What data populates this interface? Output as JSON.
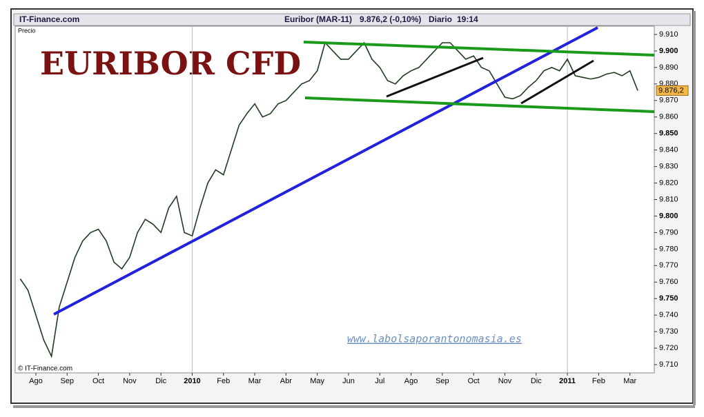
{
  "header": {
    "site": "IT-Finance.com",
    "instrument": "Euribor (MAR-11)",
    "quote": "9.876,2 (-0,10%)",
    "period": "Diario",
    "time": "19:14",
    "price_label": "Precio",
    "copyright": "© IT-Finance.com",
    "watermark": "www.labolsaporantonomasia.es",
    "last_price": "9.876,2"
  },
  "chart_data": {
    "type": "line",
    "title": "EURIBOR CFD",
    "categories": [
      null,
      null,
      "Ago",
      null,
      null,
      null,
      "Sep",
      null,
      null,
      null,
      "Oct",
      null,
      null,
      null,
      "Nov",
      null,
      null,
      null,
      "Dic",
      null,
      null,
      null,
      "2010",
      null,
      null,
      null,
      "Feb",
      null,
      null,
      null,
      "Mar",
      null,
      null,
      null,
      "Abr",
      null,
      null,
      null,
      "May",
      null,
      null,
      null,
      "Jun",
      null,
      null,
      null,
      "Jul",
      null,
      null,
      null,
      "Ago",
      null,
      null,
      null,
      "Sep",
      null,
      null,
      null,
      "Oct",
      null,
      null,
      null,
      "Nov",
      null,
      null,
      null,
      "Dic",
      null,
      null,
      null,
      "2011",
      null,
      null,
      null,
      "Feb",
      null,
      null,
      null,
      "Mar",
      null
    ],
    "series": [
      {
        "name": "Euribor (MAR-11)",
        "color": "#1f3a1f",
        "values": [
          9.762,
          9.755,
          9.74,
          9.725,
          9.715,
          9.745,
          9.76,
          9.775,
          9.785,
          9.79,
          9.792,
          9.785,
          9.772,
          9.768,
          9.775,
          9.79,
          9.798,
          9.795,
          9.79,
          9.805,
          9.812,
          9.79,
          9.788,
          9.805,
          9.82,
          9.828,
          9.825,
          9.84,
          9.855,
          9.862,
          9.868,
          9.86,
          9.862,
          9.868,
          9.87,
          9.875,
          9.88,
          9.882,
          9.888,
          9.905,
          9.9,
          9.895,
          9.895,
          9.9,
          9.905,
          9.895,
          9.89,
          9.882,
          9.88,
          9.885,
          9.888,
          9.89,
          9.895,
          9.9,
          9.905,
          9.905,
          9.9,
          9.895,
          9.897,
          9.89,
          9.888,
          9.88,
          9.872,
          9.871,
          9.873,
          9.878,
          9.882,
          9.888,
          9.89,
          9.888,
          9.895,
          9.885,
          9.884,
          9.883,
          9.884,
          9.886,
          9.887,
          9.885,
          9.888,
          9.876
        ]
      }
    ],
    "ylim": [
      9.705,
      9.915
    ],
    "yticks": [
      {
        "value": 9.71,
        "label": "9.710"
      },
      {
        "value": 9.72,
        "label": "9.720"
      },
      {
        "value": 9.73,
        "label": "9.730"
      },
      {
        "value": 9.74,
        "label": "9.740"
      },
      {
        "value": 9.75,
        "label": "9.750"
      },
      {
        "value": 9.76,
        "label": "9.760"
      },
      {
        "value": 9.77,
        "label": "9.770"
      },
      {
        "value": 9.78,
        "label": "9.780"
      },
      {
        "value": 9.79,
        "label": "9.790"
      },
      {
        "value": 9.8,
        "label": "9.800"
      },
      {
        "value": 9.81,
        "label": "9.810"
      },
      {
        "value": 9.82,
        "label": "9.820"
      },
      {
        "value": 9.83,
        "label": "9.830"
      },
      {
        "value": 9.84,
        "label": "9.840"
      },
      {
        "value": 9.85,
        "label": "9.850"
      },
      {
        "value": 9.86,
        "label": "9.860"
      },
      {
        "value": 9.87,
        "label": "9.870"
      },
      {
        "value": 9.88,
        "label": "9.880"
      },
      {
        "value": 9.89,
        "label": "9.890"
      },
      {
        "value": 9.9,
        "label": "9.900"
      },
      {
        "value": 9.91,
        "label": "9.910"
      }
    ],
    "grid": false
  }
}
